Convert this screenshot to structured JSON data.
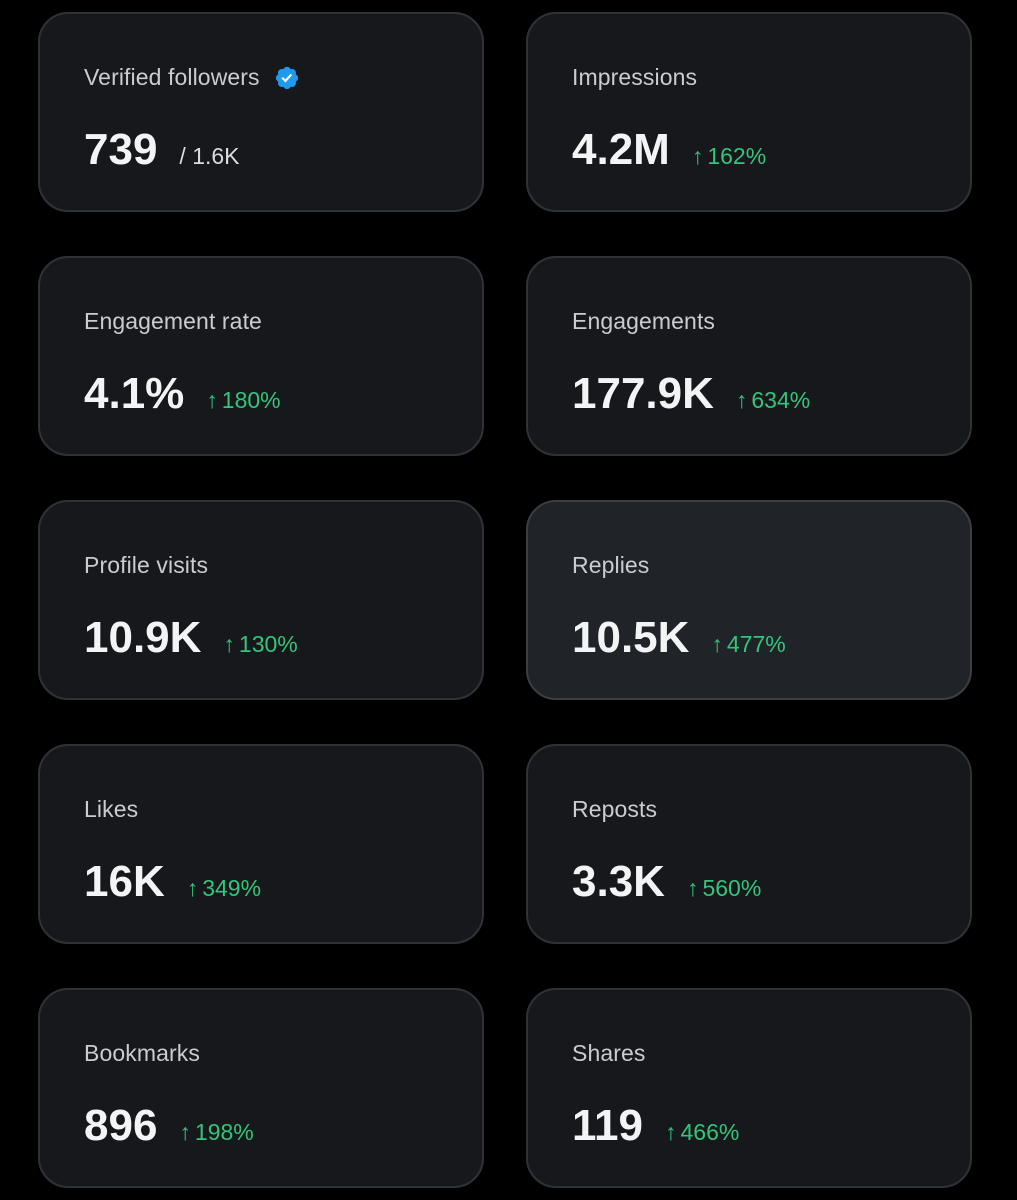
{
  "colors": {
    "background": "#000000",
    "card": "#16181c",
    "card_highlight": "#202327",
    "border": "#2f3336",
    "positive": "#34c47a",
    "verified": "#1d9bf0"
  },
  "metrics": [
    {
      "label": "Verified followers",
      "value": "739",
      "sub": "/ 1.6K",
      "icon": "verified-badge-icon"
    },
    {
      "label": "Impressions",
      "value": "4.2M",
      "delta": "162%",
      "trend_icon": "arrow-up-icon"
    },
    {
      "label": "Engagement rate",
      "value": "4.1%",
      "delta": "180%",
      "trend_icon": "arrow-up-icon"
    },
    {
      "label": "Engagements",
      "value": "177.9K",
      "delta": "634%",
      "trend_icon": "arrow-up-icon"
    },
    {
      "label": "Profile visits",
      "value": "10.9K",
      "delta": "130%",
      "trend_icon": "arrow-up-icon"
    },
    {
      "label": "Replies",
      "value": "10.5K",
      "delta": "477%",
      "trend_icon": "arrow-up-icon",
      "highlighted": true
    },
    {
      "label": "Likes",
      "value": "16K",
      "delta": "349%",
      "trend_icon": "arrow-up-icon"
    },
    {
      "label": "Reposts",
      "value": "3.3K",
      "delta": "560%",
      "trend_icon": "arrow-up-icon"
    },
    {
      "label": "Bookmarks",
      "value": "896",
      "delta": "198%",
      "trend_icon": "arrow-up-icon"
    },
    {
      "label": "Shares",
      "value": "119",
      "delta": "466%",
      "trend_icon": "arrow-up-icon"
    }
  ]
}
